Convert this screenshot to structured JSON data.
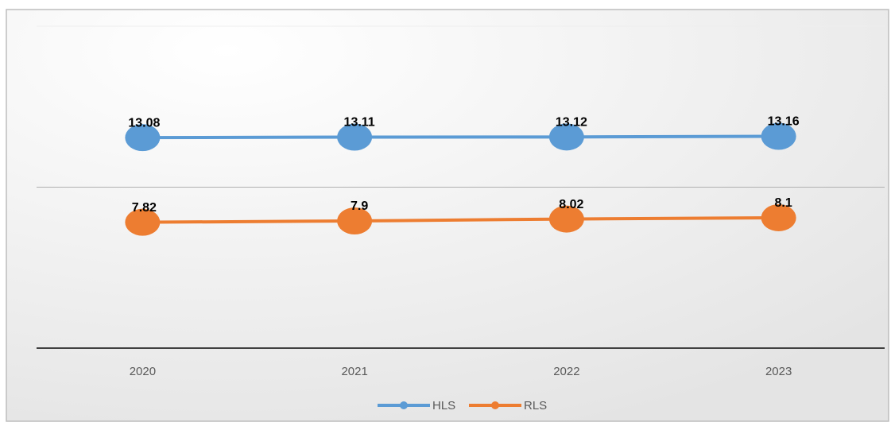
{
  "chart_data": {
    "type": "line",
    "categories": [
      "2020",
      "2021",
      "2022",
      "2023"
    ],
    "series": [
      {
        "name": "HLS",
        "color": "#5b9bd5",
        "values": [
          13.08,
          13.11,
          13.12,
          13.16
        ]
      },
      {
        "name": "RLS",
        "color": "#ed7d31",
        "values": [
          7.82,
          7.9,
          8.02,
          8.1
        ]
      }
    ],
    "ylim": [
      0,
      20
    ],
    "yticks": [
      0,
      10,
      20
    ],
    "grid": true,
    "legend": "bottom"
  }
}
